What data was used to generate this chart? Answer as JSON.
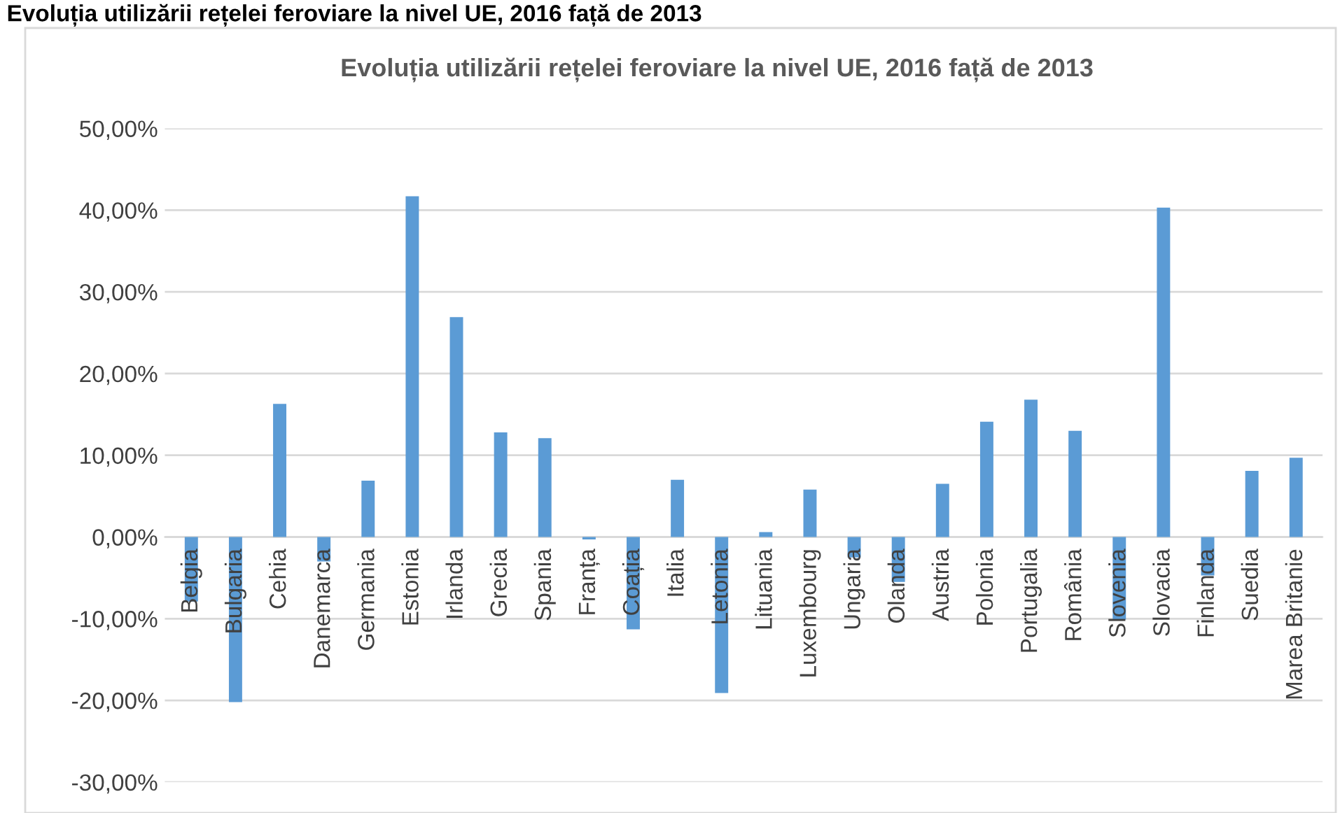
{
  "chart_data": {
    "type": "bar",
    "title": "Evoluția utilizării rețelei feroviare la nivel UE, 2016 față de 2013",
    "annotations": [
      "Evoluția utilizării rețelei feroviare la nivel UE, 2016 față de 2013"
    ],
    "categories": [
      "Belgia",
      "Bulgaria",
      "Cehia",
      "Danemarca",
      "Germania",
      "Estonia",
      "Irlanda",
      "Grecia",
      "Spania",
      "Franța",
      "Coația",
      "Italia",
      "Letonia",
      "Lituania",
      "Luxembourg",
      "Ungaria",
      "Olanda",
      "Austria",
      "Polonia",
      "Portugalia",
      "România",
      "Slovenia",
      "Slovacia",
      "Finlanda",
      "Suedia",
      "Marea Britanie"
    ],
    "values": [
      -7.9,
      -20.2,
      16.3,
      -3.0,
      6.9,
      41.7,
      26.9,
      12.8,
      12.1,
      -0.3,
      -11.3,
      7.0,
      -19.1,
      0.6,
      5.8,
      -2.5,
      -5.5,
      6.5,
      14.1,
      16.8,
      13.0,
      -10.1,
      40.3,
      -4.7,
      8.1,
      9.7
    ],
    "color": "#5b9bd5",
    "ylim": [
      -30,
      50
    ],
    "yticks": [
      {
        "value": -30,
        "label": "-30,00%"
      },
      {
        "value": -20,
        "label": "-20,00%"
      },
      {
        "value": -10,
        "label": "-10,00%"
      },
      {
        "value": 0,
        "label": "0,00%"
      },
      {
        "value": 10,
        "label": "10,00%"
      },
      {
        "value": 20,
        "label": "20,00%"
      },
      {
        "value": 30,
        "label": "30,00%"
      },
      {
        "value": 40,
        "label": "40,00%"
      },
      {
        "value": 50,
        "label": "50,00%"
      }
    ],
    "grid": "y"
  }
}
